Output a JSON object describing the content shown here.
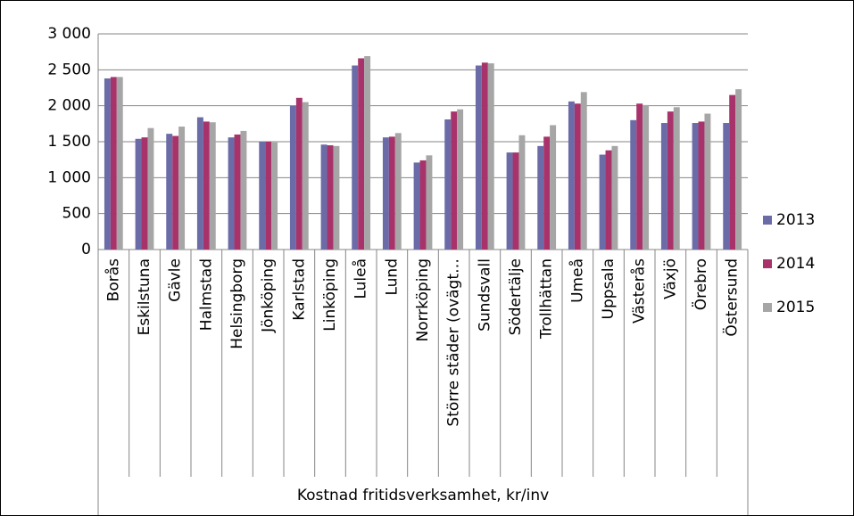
{
  "chart_data": {
    "type": "bar",
    "x_label": "Kostnad fritidsverksamhet, kr/inv",
    "categories": [
      "Borås",
      "Eskilstuna",
      "Gävle",
      "Halmstad",
      "Helsingborg",
      "Jönköping",
      "Karlstad",
      "Linköping",
      "Luleå",
      "Lund",
      "Norrköping",
      "Större städer (ovägt…",
      "Sundsvall",
      "Södertälje",
      "Trollhättan",
      "Umeå",
      "Uppsala",
      "Västerås",
      "Växjö",
      "Örebro",
      "Östersund"
    ],
    "series": [
      {
        "name": "2013",
        "color": "#6b6ba8",
        "values": [
          2380,
          1540,
          1610,
          1840,
          1560,
          1500,
          2000,
          1460,
          2560,
          1560,
          1210,
          1810,
          2560,
          1350,
          1440,
          2060,
          1320,
          1800,
          1760,
          1760,
          1760
        ]
      },
      {
        "name": "2014",
        "color": "#a8336b",
        "values": [
          2400,
          1560,
          1580,
          1780,
          1600,
          1500,
          2110,
          1450,
          2660,
          1570,
          1240,
          1920,
          2600,
          1350,
          1570,
          2030,
          1380,
          2030,
          1920,
          1780,
          2150
        ]
      },
      {
        "name": "2015",
        "color": "#a6a6a6",
        "values": [
          2400,
          1690,
          1710,
          1770,
          1650,
          1490,
          2050,
          1440,
          2690,
          1620,
          1310,
          1950,
          2590,
          1590,
          1730,
          2190,
          1440,
          2010,
          1980,
          1890,
          2230
        ]
      }
    ],
    "ylim": [
      0,
      3000
    ],
    "yticks": [
      0,
      500,
      {
        "value": 1000,
        "label": "1 000"
      },
      {
        "value": 1500,
        "label": "1 500"
      },
      {
        "value": 2000,
        "label": "2 000"
      },
      {
        "value": 2500,
        "label": "2 500"
      },
      {
        "value": 3000,
        "label": "3 000"
      }
    ],
    "grid": true,
    "legend": "right"
  }
}
